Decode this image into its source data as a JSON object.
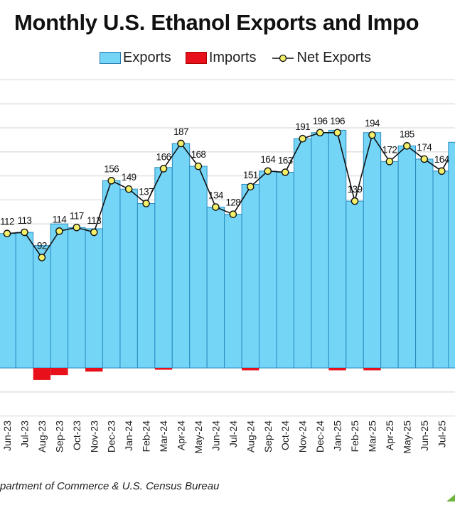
{
  "chart_data": {
    "type": "bar",
    "title": "Monthly U.S. Ethanol Exports and Impo",
    "legend": [
      "Exports",
      "Imports",
      "Net Exports"
    ],
    "legend_position": "top",
    "categories": [
      "Jun-23",
      "Jul-23",
      "Aug-23",
      "Sep-23",
      "Oct-23",
      "Nov-23",
      "Dec-23",
      "Jan-24",
      "Feb-24",
      "Mar-24",
      "Apr-24",
      "May-24",
      "Jun-24",
      "Jul-24",
      "Aug-24",
      "Sep-24",
      "Oct-24",
      "Nov-24",
      "Dec-24",
      "Jan-25",
      "Feb-25",
      "Mar-25",
      "Apr-25",
      "May-25",
      "Jun-25",
      "Jul-25"
    ],
    "series": [
      {
        "name": "Exports",
        "type": "bar",
        "color": "#75d5f7",
        "values": [
          112,
          113,
          102,
          120,
          117,
          116,
          156,
          149,
          137,
          167,
          187,
          168,
          134,
          128,
          153,
          164,
          163,
          191,
          196,
          198,
          139,
          196,
          172,
          185,
          174,
          164
        ]
      },
      {
        "name": "Imports",
        "type": "bar",
        "color": "#e8101a",
        "values": [
          0,
          0,
          -10,
          -6,
          0,
          -3,
          0,
          0,
          0,
          -1,
          0,
          0,
          0,
          0,
          -2,
          0,
          0,
          0,
          0,
          -2,
          0,
          -2,
          0,
          0,
          0,
          0
        ]
      },
      {
        "name": "Net Exports",
        "type": "line",
        "color": "#111111",
        "marker": "#f5f06a",
        "values": [
          112,
          113,
          92,
          114,
          117,
          113,
          156,
          149,
          137,
          166,
          187,
          168,
          134,
          128,
          151,
          164,
          163,
          191,
          196,
          196,
          139,
          194,
          172,
          185,
          174,
          164
        ]
      }
    ],
    "ylim": [
      -40,
      240
    ],
    "grid": true,
    "source": "partment of Commerce & U.S. Census Bureau"
  }
}
